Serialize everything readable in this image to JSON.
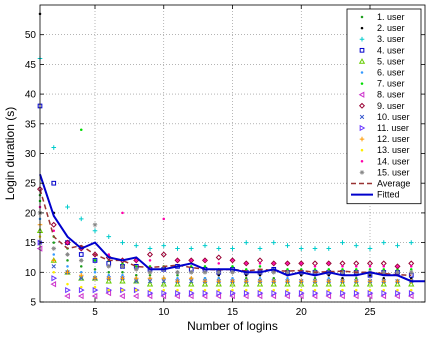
{
  "chart_data": {
    "type": "scatter",
    "xlabel": "Number of logins",
    "ylabel": "Login duration (s)",
    "xlim": [
      1,
      29
    ],
    "ylim": [
      5,
      55
    ],
    "xticks": [
      5,
      10,
      15,
      20,
      25
    ],
    "yticks": [
      5,
      10,
      15,
      20,
      25,
      30,
      35,
      40,
      45,
      50
    ],
    "grid": true,
    "legend_position": "top-right",
    "series": [
      {
        "name": "1. user",
        "marker": "dot",
        "color": "#1e9e1e",
        "x": [
          1,
          2,
          3,
          4,
          5,
          6,
          7,
          8,
          9,
          10,
          11,
          12,
          13,
          14,
          15,
          16,
          17,
          18,
          19,
          20,
          21,
          22,
          23,
          24,
          25,
          26,
          27,
          28
        ],
        "y": [
          23,
          15,
          12,
          11,
          10.5,
          10,
          10,
          9.5,
          9.5,
          9,
          9.5,
          9,
          9,
          9,
          8.5,
          9,
          8.5,
          9,
          8.5,
          8.5,
          9,
          8.5,
          8.5,
          9,
          8.5,
          8.5,
          8.5,
          8.5
        ]
      },
      {
        "name": "2. user",
        "marker": "dot",
        "color": "#000000",
        "x": [
          1,
          2,
          3,
          4,
          5,
          6,
          7,
          8,
          9,
          10,
          11,
          12,
          13,
          14,
          15,
          16,
          17,
          18,
          19,
          20,
          21,
          22,
          23,
          24,
          25,
          26,
          27,
          28
        ],
        "y": [
          53.5,
          20,
          13,
          12,
          12,
          11,
          11,
          10.5,
          10,
          10.5,
          10,
          10,
          10,
          9.5,
          10,
          9.5,
          9.5,
          10,
          9.5,
          9.5,
          9.5,
          9.5,
          9,
          9.5,
          9.5,
          9,
          9.5,
          9
        ]
      },
      {
        "name": "3. user",
        "marker": "plus",
        "color": "#00cccc",
        "x": [
          1,
          2,
          3,
          4,
          5,
          6,
          7,
          8,
          9,
          10,
          11,
          12,
          13,
          14,
          15,
          16,
          17,
          18,
          19,
          20,
          21,
          22,
          23,
          24,
          25,
          26,
          27,
          28
        ],
        "y": [
          46,
          31,
          21,
          19,
          17,
          16,
          15,
          14.5,
          14,
          14.5,
          14,
          14,
          14.5,
          14,
          14,
          15,
          14,
          15,
          14.5,
          14,
          14,
          14,
          15,
          14.5,
          14,
          15,
          14.5,
          15
        ]
      },
      {
        "name": "4. user",
        "marker": "square",
        "color": "#0000cc",
        "x": [
          1,
          2,
          3,
          4,
          5,
          6,
          7,
          8,
          9,
          10,
          11,
          12,
          13,
          14,
          15,
          16,
          17,
          18,
          19,
          20,
          21,
          22,
          23,
          24,
          25,
          26,
          27,
          28
        ],
        "y": [
          38,
          25,
          15,
          13,
          12,
          11.5,
          11,
          11,
          10.5,
          10.5,
          11,
          10.5,
          10.5,
          10,
          10.5,
          10,
          10,
          10.5,
          10,
          10,
          10,
          10,
          10,
          10,
          9.5,
          10,
          10,
          9.5
        ]
      },
      {
        "name": "5. user",
        "marker": "triangle-up",
        "color": "#66cc00",
        "x": [
          1,
          2,
          3,
          4,
          5,
          6,
          7,
          8,
          9,
          10,
          11,
          12,
          13,
          14,
          15,
          16,
          17,
          18,
          19,
          20,
          21,
          22,
          23,
          24,
          25,
          26,
          27,
          28
        ],
        "y": [
          17,
          12,
          10,
          9,
          9,
          8.5,
          8.5,
          8.5,
          8,
          8,
          8,
          8,
          8,
          8,
          8,
          8,
          8,
          8,
          8,
          8,
          8,
          8,
          8,
          8,
          8,
          8,
          8,
          8
        ]
      },
      {
        "name": "6. user",
        "marker": "dot",
        "color": "#3399ff",
        "x": [
          1,
          2,
          3,
          4,
          5,
          6,
          7,
          8,
          9,
          10,
          11,
          12,
          13,
          14,
          15,
          16,
          17,
          18,
          19,
          20,
          21,
          22,
          23,
          24,
          25,
          26,
          27,
          28
        ],
        "y": [
          19,
          13,
          11,
          10,
          10,
          9.5,
          9.5,
          9,
          9,
          9,
          9,
          9,
          9,
          9,
          9,
          8.5,
          9,
          8.5,
          9,
          8.5,
          8.5,
          9,
          8.5,
          8.5,
          8.5,
          8.5,
          8.5,
          8.5
        ]
      },
      {
        "name": "7. user",
        "marker": "dot",
        "color": "#00dd00",
        "x": [
          1,
          2,
          3,
          4,
          5,
          6,
          7,
          8,
          9,
          10,
          11,
          12,
          13,
          14,
          15,
          16,
          17,
          18,
          19,
          20,
          21,
          22,
          23,
          24,
          25,
          26,
          27,
          28
        ],
        "y": [
          22,
          16,
          14,
          34,
          12,
          12,
          11.5,
          11,
          11,
          11,
          11,
          11,
          11,
          10.5,
          11,
          10.5,
          11,
          10.5,
          10.5,
          10.5,
          10.5,
          10.5,
          10.5,
          10.5,
          10.5,
          10.5,
          10.5,
          10.5
        ]
      },
      {
        "name": "8. user",
        "marker": "triangle-left",
        "color": "#cc33cc",
        "x": [
          1,
          2,
          3,
          4,
          5,
          6,
          7,
          8,
          9,
          10,
          11,
          12,
          13,
          14,
          15,
          16,
          17,
          18,
          19,
          20,
          21,
          22,
          23,
          24,
          25,
          26,
          27,
          28
        ],
        "y": [
          14,
          8,
          6,
          6,
          6,
          6.5,
          6,
          6,
          6,
          6,
          6,
          6,
          6,
          6,
          6,
          6,
          6,
          6,
          6,
          6,
          6,
          6,
          6,
          6,
          6,
          6,
          6,
          6
        ]
      },
      {
        "name": "9. user",
        "marker": "diamond",
        "color": "#990033",
        "x": [
          1,
          2,
          3,
          4,
          5,
          6,
          7,
          8,
          9,
          10,
          11,
          12,
          13,
          14,
          15,
          16,
          17,
          18,
          19,
          20,
          21,
          22,
          23,
          24,
          25,
          26,
          27,
          28
        ],
        "y": [
          24,
          18,
          15,
          14,
          13,
          12.5,
          12,
          12,
          13,
          13,
          12,
          12,
          12,
          12.5,
          12,
          11.5,
          12,
          11.5,
          11.5,
          11.5,
          11.5,
          11.5,
          11.5,
          11.5,
          11.5,
          11.5,
          11,
          11.5
        ]
      },
      {
        "name": "10. user",
        "marker": "cross",
        "color": "#3355cc",
        "x": [
          1,
          2,
          3,
          4,
          5,
          6,
          7,
          8,
          9,
          10,
          11,
          12,
          13,
          14,
          15,
          16,
          17,
          18,
          19,
          20,
          21,
          22,
          23,
          24,
          25,
          26,
          27,
          28
        ],
        "y": [
          15,
          11,
          10,
          9,
          9,
          9,
          9,
          8.5,
          8.5,
          8.5,
          8.5,
          8.5,
          8.5,
          8.5,
          8.5,
          8.5,
          8.5,
          8.5,
          8.5,
          8.5,
          8.5,
          8.5,
          8.5,
          8.5,
          8.5,
          8.5,
          8.5,
          8.5
        ]
      },
      {
        "name": "11. user",
        "marker": "triangle-right",
        "color": "#6633ff",
        "x": [
          1,
          2,
          3,
          4,
          5,
          6,
          7,
          8,
          9,
          10,
          11,
          12,
          13,
          14,
          15,
          16,
          17,
          18,
          19,
          20,
          21,
          22,
          23,
          24,
          25,
          26,
          27,
          28
        ],
        "y": [
          15,
          9,
          7,
          7,
          7,
          7,
          7,
          7,
          6.5,
          6.5,
          6.5,
          6.5,
          6.5,
          6.5,
          6.5,
          6.5,
          6.5,
          6.5,
          6.5,
          6.5,
          6.5,
          6.5,
          6.5,
          6.5,
          6.5,
          6.5,
          6.5,
          6.5
        ]
      },
      {
        "name": "12. user",
        "marker": "plus",
        "color": "#ff9900",
        "x": [
          1,
          2,
          3,
          4,
          5,
          6,
          7,
          8,
          9,
          10,
          11,
          12,
          13,
          14,
          15,
          16,
          17,
          18,
          19,
          20,
          21,
          22,
          23,
          24,
          25,
          26,
          27,
          28
        ],
        "y": [
          18,
          12,
          10,
          9.5,
          9,
          9,
          9,
          9,
          9,
          9,
          8.5,
          9,
          8.5,
          8.5,
          8.5,
          8.5,
          8.5,
          8.5,
          8.5,
          8.5,
          8.5,
          8.5,
          8.5,
          8.5,
          8.5,
          8.5,
          8.5,
          8.5
        ]
      },
      {
        "name": "13. user",
        "marker": "dot",
        "color": "#ffee00",
        "x": [
          1,
          2,
          3,
          4,
          5,
          6,
          7,
          8,
          9,
          10,
          11,
          12,
          13,
          14,
          15,
          16,
          17,
          18,
          19,
          20,
          21,
          22,
          23,
          24,
          25,
          26,
          27,
          28
        ],
        "y": [
          16,
          10,
          8,
          7.5,
          7.5,
          7,
          7,
          7,
          7,
          7,
          7,
          7,
          7,
          7,
          7,
          7,
          7,
          7,
          7,
          7,
          7,
          7,
          7,
          7,
          7,
          7,
          7,
          7
        ]
      },
      {
        "name": "14. user",
        "marker": "dot",
        "color": "#ff00aa",
        "x": [
          1,
          2,
          3,
          4,
          5,
          6,
          7,
          8,
          9,
          10,
          11,
          12,
          13,
          14,
          15,
          16,
          17,
          18,
          19,
          20,
          21,
          22,
          23,
          24,
          25,
          26,
          27,
          28
        ],
        "y": [
          21,
          17,
          15,
          14,
          13,
          13,
          20,
          12,
          12,
          19,
          12,
          12,
          12,
          11.5,
          12,
          11.5,
          11.5,
          11.5,
          11.5,
          11.5,
          11,
          11.5,
          11,
          11,
          11,
          11,
          11,
          11
        ]
      },
      {
        "name": "15. user",
        "marker": "star",
        "color": "#888888",
        "x": [
          1,
          2,
          3,
          4,
          5,
          6,
          7,
          8,
          9,
          10,
          11,
          12,
          13,
          14,
          15,
          16,
          17,
          18,
          19,
          20,
          21,
          22,
          23,
          24,
          25,
          26,
          27,
          28
        ],
        "y": [
          20,
          14,
          13,
          12,
          18,
          11,
          11,
          10.5,
          10,
          10.5,
          10,
          10,
          10,
          10,
          10,
          10,
          10,
          10,
          10,
          10,
          10,
          10,
          10,
          10,
          10,
          10,
          10,
          10
        ]
      },
      {
        "name": "Average",
        "marker": "dashed-line",
        "color": "#993333",
        "x": [
          1,
          2,
          3,
          4,
          5,
          6,
          7,
          8,
          9,
          10,
          11,
          12,
          13,
          14,
          15,
          16,
          17,
          18,
          19,
          20,
          21,
          22,
          23,
          24,
          25,
          26,
          27,
          28
        ],
        "y": [
          24,
          16,
          14,
          14.5,
          13,
          12,
          12,
          11,
          10.8,
          11,
          11.2,
          10.8,
          10.5,
          10.4,
          10.5,
          10.2,
          10.5,
          10.3,
          10.2,
          10.3,
          10,
          10.1,
          10.2,
          10,
          10,
          9.8,
          9.6,
          9.5
        ]
      },
      {
        "name": "Fitted",
        "marker": "line",
        "color": "#0000cc",
        "x": [
          1,
          2,
          3,
          4,
          5,
          6,
          7,
          8,
          9,
          10,
          11,
          12,
          13,
          14,
          15,
          16,
          17,
          18,
          19,
          20,
          21,
          22,
          23,
          24,
          25,
          26,
          27,
          28,
          29
        ],
        "y": [
          26.5,
          19.5,
          16,
          14,
          15,
          12.5,
          12,
          12.5,
          10.5,
          10.5,
          11,
          11.5,
          10.5,
          10.5,
          10.5,
          10,
          10,
          10.5,
          9.5,
          10,
          9.5,
          10,
          9.5,
          9.5,
          10,
          9.5,
          9.5,
          8.5,
          8.5
        ]
      }
    ]
  }
}
